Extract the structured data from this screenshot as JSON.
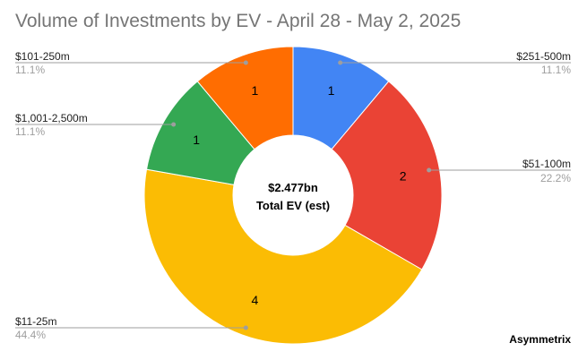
{
  "chart_data": {
    "type": "pie",
    "donut": true,
    "title": "Volume of Investments by EV - April 28 - May 2, 2025",
    "center_value": "$2.477bn",
    "center_label": "Total EV (est)",
    "watermark": "Asymmetrix",
    "slices": [
      {
        "label": "$251-500m",
        "value": 1,
        "percent": "11.1%",
        "color": "#4285f4"
      },
      {
        "label": "$51-100m",
        "value": 2,
        "percent": "22.2%",
        "color": "#ea4335"
      },
      {
        "label": "$11-25m",
        "value": 4,
        "percent": "44.4%",
        "color": "#fbbc04"
      },
      {
        "label": "$1,001-2,500m",
        "value": 1,
        "percent": "11.1%",
        "color": "#34a853"
      },
      {
        "label": "$101-250m",
        "value": 1,
        "percent": "11.1%",
        "color": "#ff6d01"
      }
    ]
  }
}
